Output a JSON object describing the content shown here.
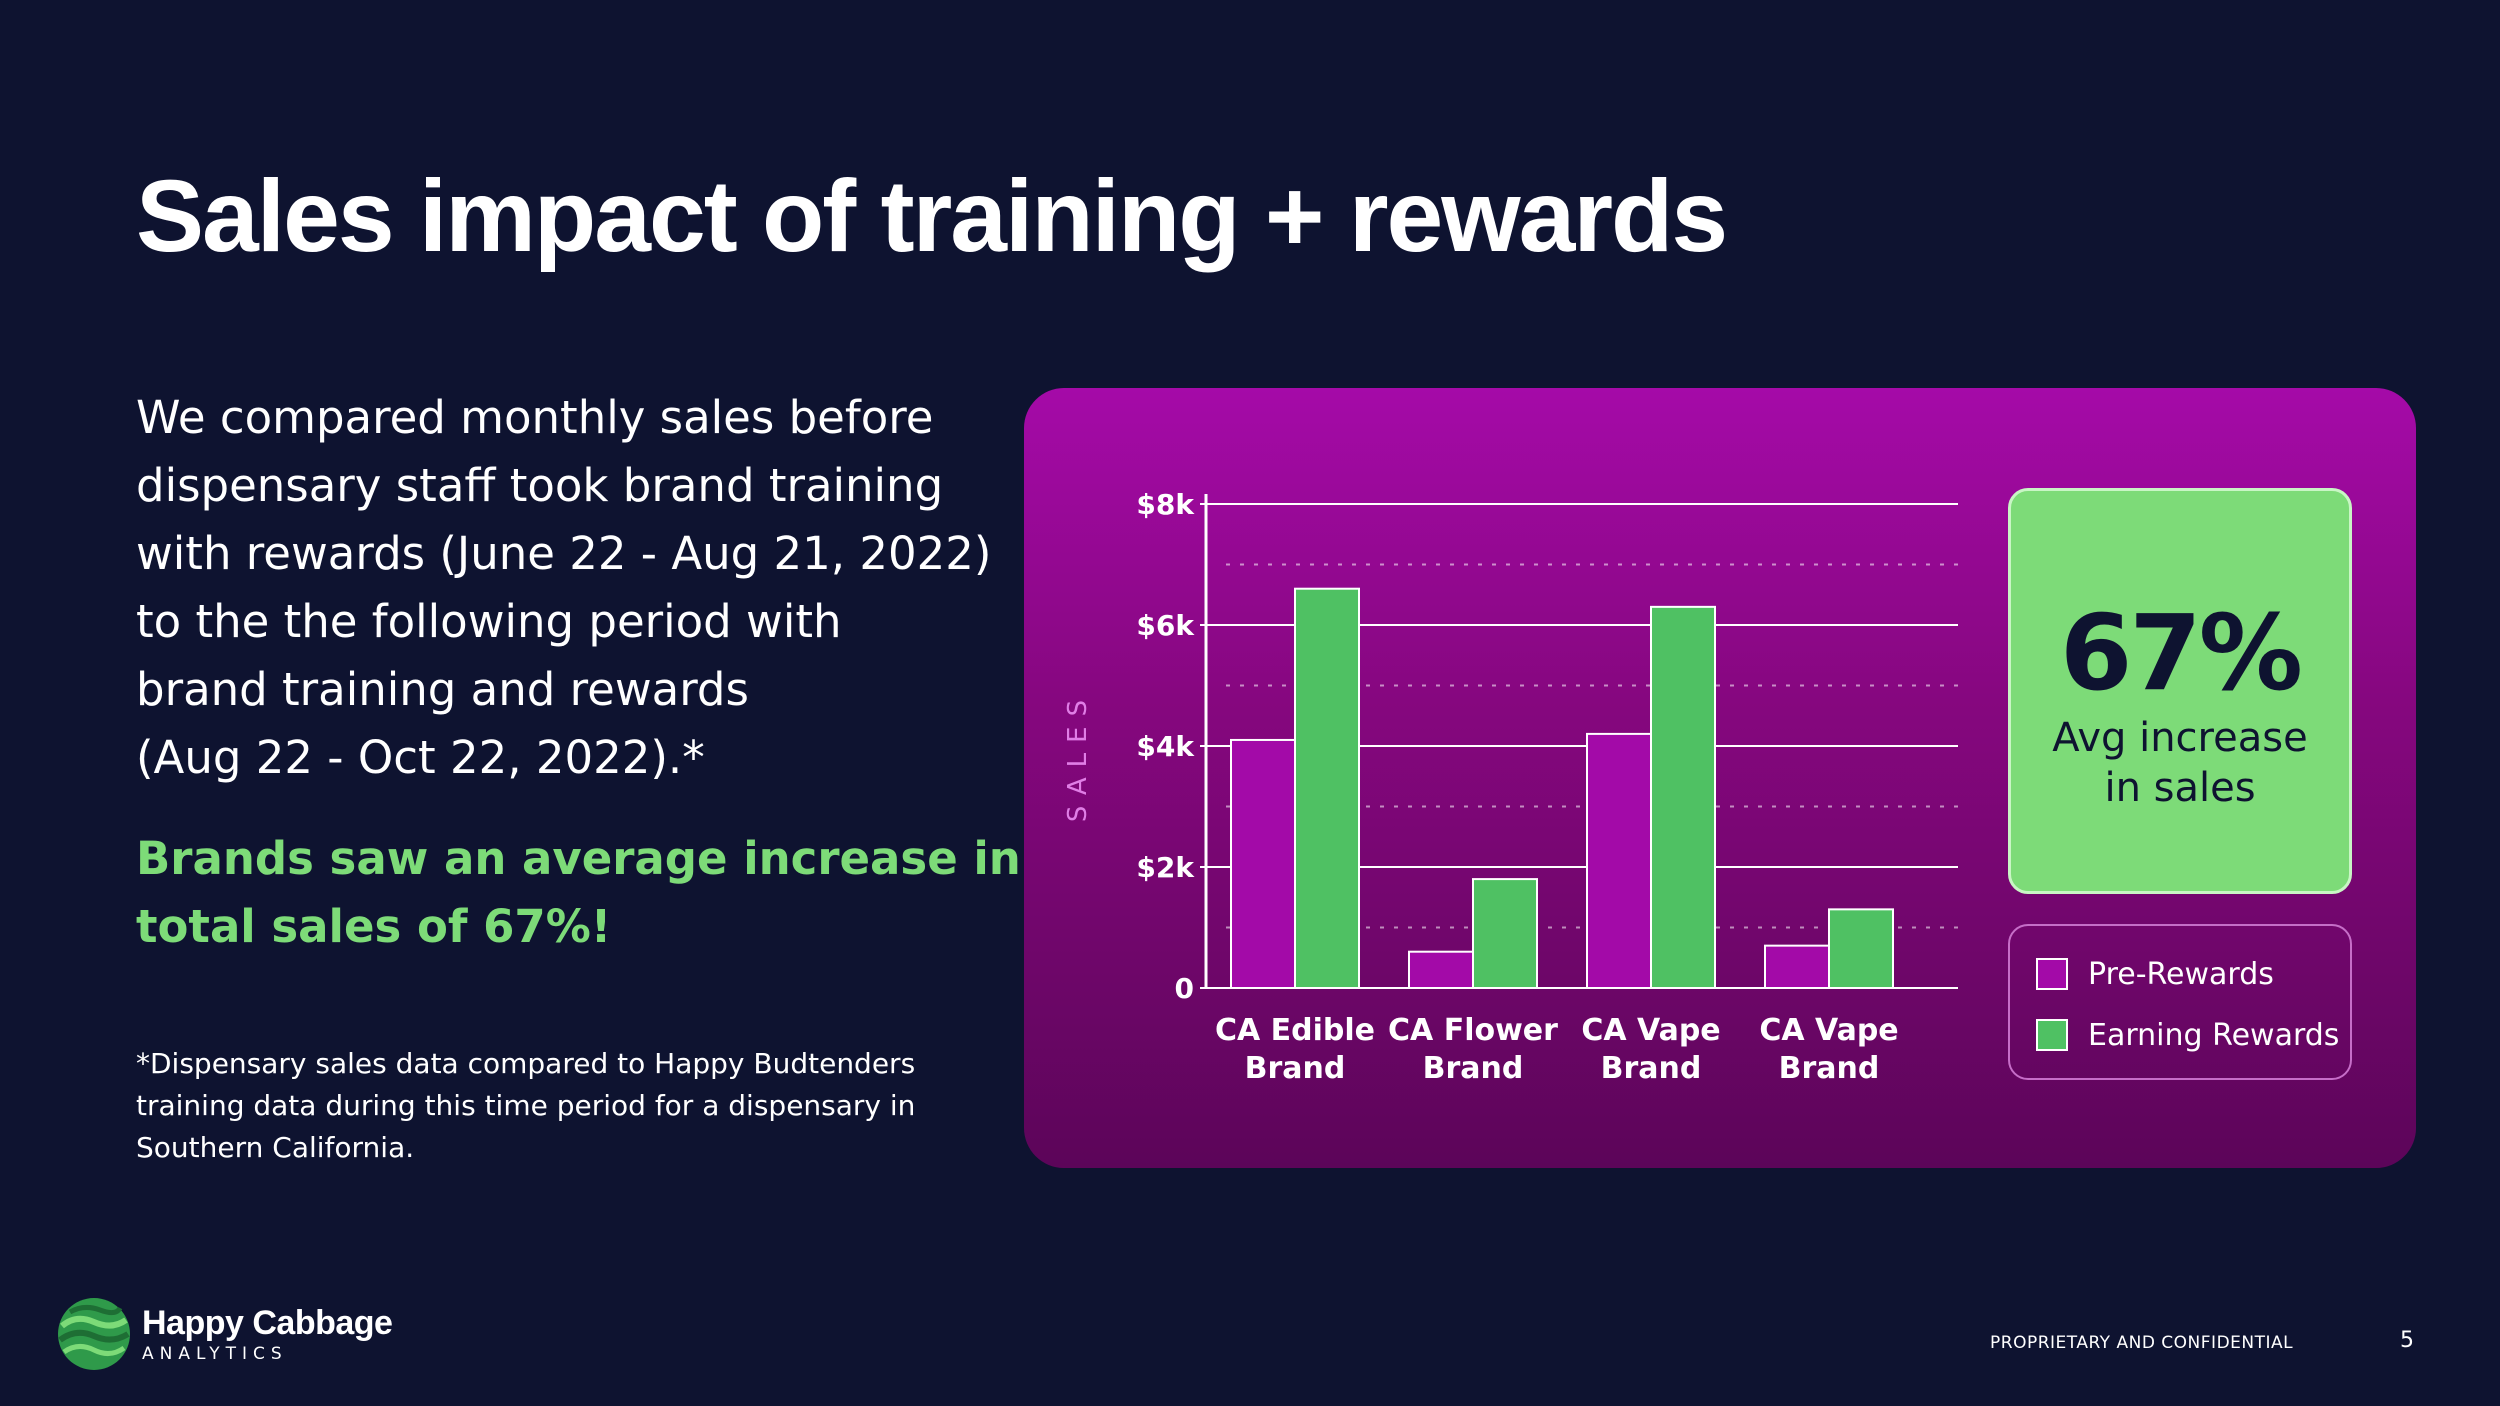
{
  "slide": {
    "title": "Sales impact of  training + rewards",
    "intro_lines": [
      "We compared monthly sales before",
      "dispensary staff took brand training",
      "with rewards (June 22 - Aug 21, 2022)",
      "to the the following period with",
      "brand training and rewards",
      "(Aug 22 - Oct 22, 2022).*"
    ],
    "highlight_lines": [
      "Brands saw an average increase in",
      "total sales of 67%!"
    ],
    "footnote_lines": [
      "*Dispensary sales data compared to Happy Budtenders",
      "training data during this time period for a dispensary in",
      "Southern California."
    ]
  },
  "stat": {
    "value": "67%",
    "label_lines": [
      "Avg increase",
      "in sales"
    ]
  },
  "legend": {
    "items": [
      {
        "label": "Pre-Rewards",
        "color": "#a30aa8"
      },
      {
        "label": "Earning Rewards",
        "color": "#4fc163"
      }
    ]
  },
  "chart_data": {
    "type": "bar",
    "categories": [
      [
        "CA Edible",
        "Brand"
      ],
      [
        "CA Flower",
        "Brand"
      ],
      [
        "CA Vape",
        "Brand"
      ],
      [
        "CA Vape",
        "Brand"
      ]
    ],
    "series": [
      {
        "name": "Pre-Rewards",
        "color": "#a30aa8",
        "values": [
          4100,
          600,
          4200,
          700
        ]
      },
      {
        "name": "Earning Rewards",
        "color": "#4fc163",
        "values": [
          6600,
          1800,
          6300,
          1300
        ]
      }
    ],
    "ylabel": "SALES",
    "ylim": [
      0,
      8000
    ],
    "yticks": [
      {
        "value": 0,
        "label": "0"
      },
      {
        "value": 2000,
        "label": "$2k"
      },
      {
        "value": 4000,
        "label": "$4k"
      },
      {
        "value": 6000,
        "label": "$6k"
      },
      {
        "value": 8000,
        "label": "$8k"
      }
    ],
    "minor_gridlines": [
      1000,
      3000,
      5000,
      7000
    ],
    "grid": true,
    "legend_position": "right"
  },
  "footer": {
    "logo_name": "Happy Cabbage",
    "logo_sub": "ANALYTICS",
    "confidential": "PROPRIETARY AND CONFIDENTIAL",
    "page_number": "5"
  },
  "colors": {
    "background": "#0e1330",
    "accent_green": "#7ddb78",
    "panel_magenta": "#a50aa8"
  }
}
